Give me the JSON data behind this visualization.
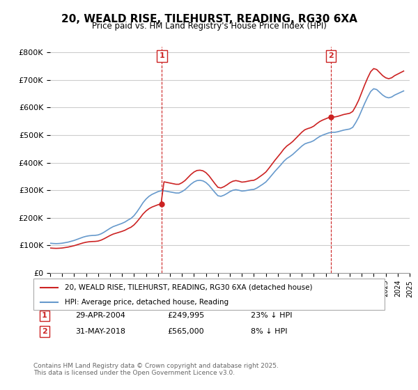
{
  "title": "20, WEALD RISE, TILEHURST, READING, RG30 6XA",
  "subtitle": "Price paid vs. HM Land Registry's House Price Index (HPI)",
  "ylabel": "",
  "xlabel": "",
  "ylim": [
    0,
    820000
  ],
  "yticks": [
    0,
    100000,
    200000,
    300000,
    400000,
    500000,
    600000,
    700000,
    800000
  ],
  "ytick_labels": [
    "£0",
    "£100K",
    "£200K",
    "£300K",
    "£400K",
    "£500K",
    "£600K",
    "£700K",
    "£800K"
  ],
  "background_color": "#ffffff",
  "plot_bg_color": "#ffffff",
  "grid_color": "#cccccc",
  "hpi_color": "#6699cc",
  "sale_color": "#cc2222",
  "marker1_x": 2004.33,
  "marker1_y": 249995,
  "marker1_label": "1",
  "marker1_date": "29-APR-2004",
  "marker1_price": "£249,995",
  "marker1_note": "23% ↓ HPI",
  "marker2_x": 2018.42,
  "marker2_y": 565000,
  "marker2_label": "2",
  "marker2_date": "31-MAY-2018",
  "marker2_price": "£565,000",
  "marker2_note": "8% ↓ HPI",
  "legend_sale": "20, WEALD RISE, TILEHURST, READING, RG30 6XA (detached house)",
  "legend_hpi": "HPI: Average price, detached house, Reading",
  "footer": "Contains HM Land Registry data © Crown copyright and database right 2025.\nThis data is licensed under the Open Government Licence v3.0.",
  "hpi_years": [
    1995.0,
    1995.25,
    1995.5,
    1995.75,
    1996.0,
    1996.25,
    1996.5,
    1996.75,
    1997.0,
    1997.25,
    1997.5,
    1997.75,
    1998.0,
    1998.25,
    1998.5,
    1998.75,
    1999.0,
    1999.25,
    1999.5,
    1999.75,
    2000.0,
    2000.25,
    2000.5,
    2000.75,
    2001.0,
    2001.25,
    2001.5,
    2001.75,
    2002.0,
    2002.25,
    2002.5,
    2002.75,
    2003.0,
    2003.25,
    2003.5,
    2003.75,
    2004.0,
    2004.25,
    2004.5,
    2004.75,
    2005.0,
    2005.25,
    2005.5,
    2005.75,
    2006.0,
    2006.25,
    2006.5,
    2006.75,
    2007.0,
    2007.25,
    2007.5,
    2007.75,
    2008.0,
    2008.25,
    2008.5,
    2008.75,
    2009.0,
    2009.25,
    2009.5,
    2009.75,
    2010.0,
    2010.25,
    2010.5,
    2010.75,
    2011.0,
    2011.25,
    2011.5,
    2011.75,
    2012.0,
    2012.25,
    2012.5,
    2012.75,
    2013.0,
    2013.25,
    2013.5,
    2013.75,
    2014.0,
    2014.25,
    2014.5,
    2014.75,
    2015.0,
    2015.25,
    2015.5,
    2015.75,
    2016.0,
    2016.25,
    2016.5,
    2016.75,
    2017.0,
    2017.25,
    2017.5,
    2017.75,
    2018.0,
    2018.25,
    2018.5,
    2018.75,
    2019.0,
    2019.25,
    2019.5,
    2019.75,
    2020.0,
    2020.25,
    2020.5,
    2020.75,
    2021.0,
    2021.25,
    2021.5,
    2021.75,
    2022.0,
    2022.25,
    2022.5,
    2022.75,
    2023.0,
    2023.25,
    2023.5,
    2023.75,
    2024.0,
    2024.25,
    2024.5
  ],
  "hpi_values": [
    108000,
    107000,
    106500,
    107000,
    108000,
    110000,
    112000,
    115000,
    118000,
    122000,
    126000,
    130000,
    133000,
    135000,
    136000,
    136500,
    138000,
    142000,
    148000,
    155000,
    162000,
    168000,
    172000,
    176000,
    180000,
    185000,
    192000,
    198000,
    208000,
    222000,
    238000,
    255000,
    268000,
    278000,
    285000,
    290000,
    295000,
    298000,
    298000,
    296000,
    294000,
    292000,
    290000,
    290000,
    295000,
    302000,
    312000,
    322000,
    330000,
    335000,
    336000,
    334000,
    328000,
    318000,
    305000,
    292000,
    280000,
    278000,
    282000,
    288000,
    295000,
    300000,
    302000,
    300000,
    297000,
    298000,
    300000,
    302000,
    303000,
    308000,
    315000,
    322000,
    330000,
    342000,
    355000,
    368000,
    380000,
    392000,
    405000,
    415000,
    422000,
    430000,
    440000,
    450000,
    460000,
    468000,
    472000,
    475000,
    480000,
    488000,
    495000,
    500000,
    504000,
    508000,
    510000,
    510000,
    512000,
    515000,
    518000,
    520000,
    522000,
    528000,
    545000,
    565000,
    590000,
    615000,
    638000,
    658000,
    668000,
    665000,
    655000,
    645000,
    638000,
    635000,
    638000,
    645000,
    650000,
    655000,
    660000
  ],
  "sale_years": [
    2004.33,
    2018.42
  ],
  "sale_values": [
    249995,
    565000
  ],
  "xmin": 1995,
  "xmax": 2025
}
